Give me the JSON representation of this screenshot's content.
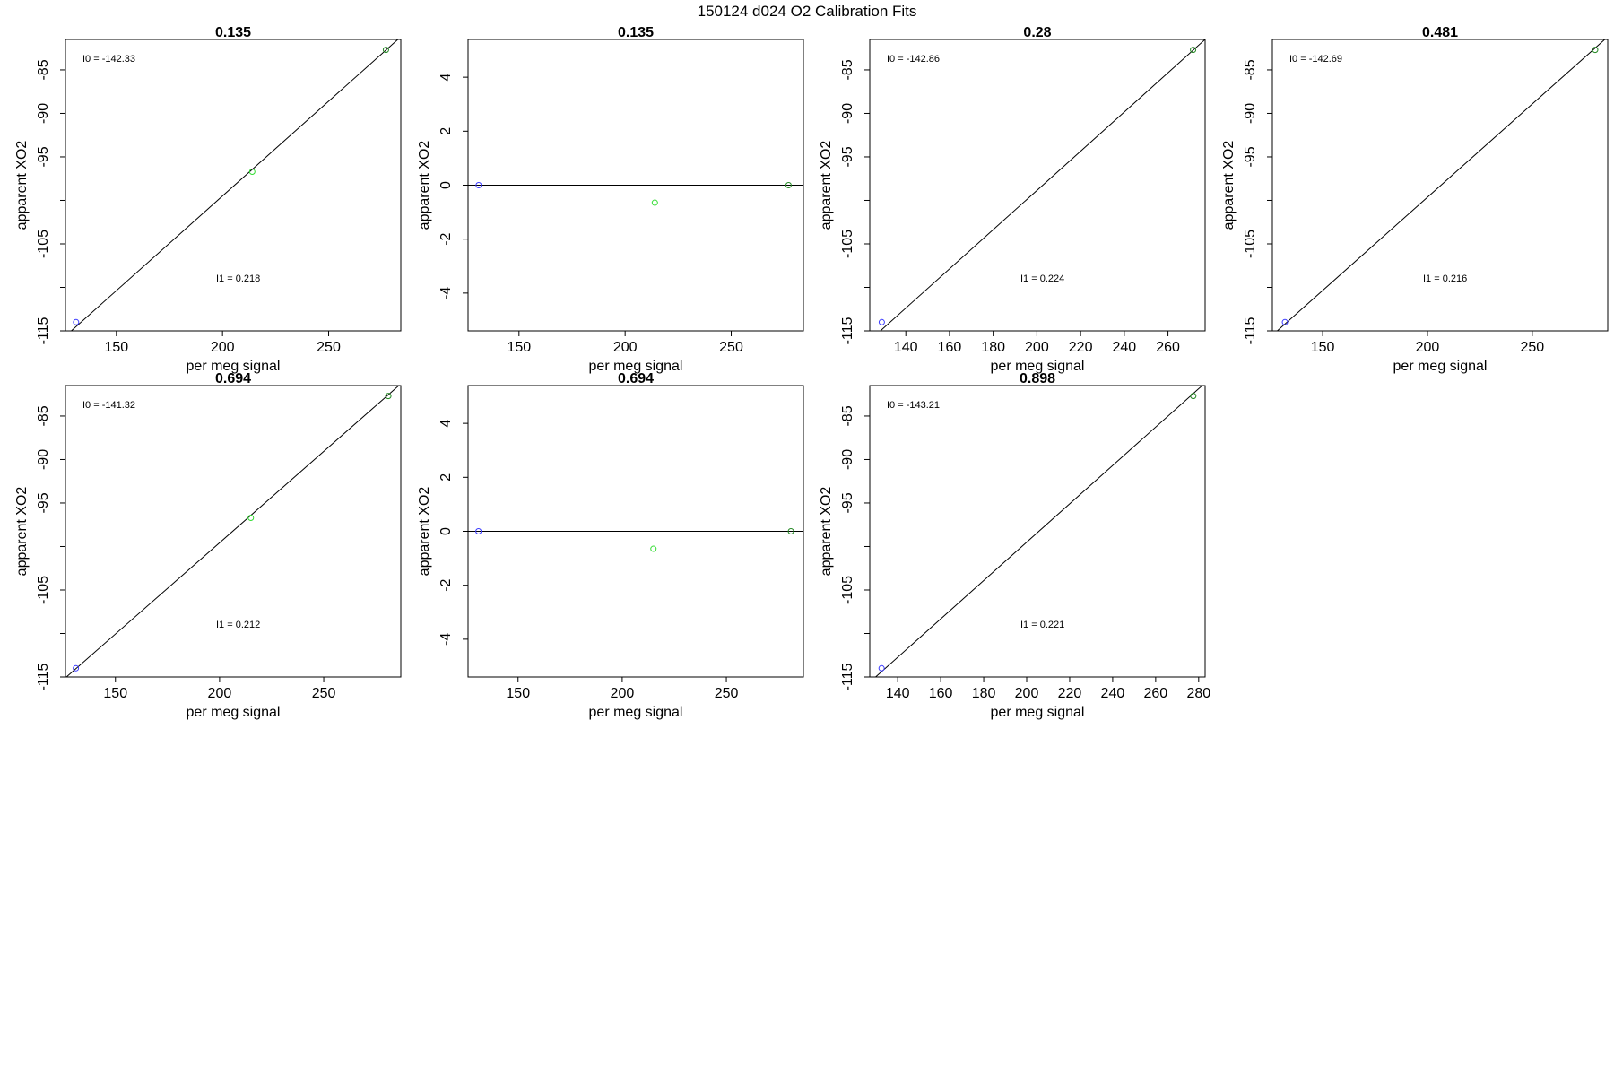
{
  "page_title": "150124   d024   O2 Calibration Fits",
  "colors": {
    "blue_point": "#3a3aff",
    "green_point": "#33dd33",
    "dark_green_point": "#228822",
    "axis": "#000000",
    "fit_line": "#000000"
  },
  "chart_data": [
    {
      "type": "scatter",
      "title": "0.135",
      "xlabel": "per meg signal",
      "ylabel": "apparent XO2",
      "xlim": [
        126,
        284
      ],
      "ylim": [
        -115,
        -81.5
      ],
      "xticks": [
        150,
        200,
        250
      ],
      "yticks": [
        -115,
        -105,
        -95,
        -90,
        -85
      ],
      "minor_yticks": [
        -110,
        -100
      ],
      "points": [
        {
          "x": 131,
          "y": -114,
          "color": "blue"
        },
        {
          "x": 214,
          "y": -96.7,
          "color": "green"
        },
        {
          "x": 277,
          "y": -82.7,
          "color": "dark-green"
        }
      ],
      "fit_line": [
        {
          "x": 126,
          "y": -115.6
        },
        {
          "x": 284,
          "y": -81.2
        }
      ],
      "annotations": [
        {
          "label": "I0 =",
          "value": "-142.33"
        },
        {
          "label": "I1 =",
          "value": "0.218"
        }
      ]
    },
    {
      "type": "scatter",
      "title": "0.135",
      "xlabel": "per meg signal",
      "ylabel": "apparent XO2",
      "xlim": [
        126,
        284
      ],
      "ylim": [
        -5.4,
        5.4
      ],
      "xticks": [
        150,
        200,
        250
      ],
      "yticks": [
        -4,
        -2,
        0,
        2,
        4
      ],
      "minor_yticks": [],
      "points": [
        {
          "x": 131,
          "y": 0,
          "color": "blue"
        },
        {
          "x": 214,
          "y": -0.65,
          "color": "green"
        },
        {
          "x": 277,
          "y": 0,
          "color": "dark-green"
        }
      ],
      "fit_line": [
        {
          "x": 126,
          "y": 0
        },
        {
          "x": 284,
          "y": 0
        }
      ],
      "annotations": []
    },
    {
      "type": "scatter",
      "title": "0.28",
      "xlabel": "per meg signal",
      "ylabel": "apparent XO2",
      "xlim": [
        123.5,
        277
      ],
      "ylim": [
        -115,
        -81.5
      ],
      "xticks": [
        140,
        160,
        180,
        200,
        220,
        240,
        260
      ],
      "yticks": [
        -115,
        -105,
        -95,
        -90,
        -85
      ],
      "minor_yticks": [
        -110,
        -100
      ],
      "points": [
        {
          "x": 129,
          "y": -114,
          "color": "blue"
        },
        {
          "x": 271.5,
          "y": -82.7,
          "color": "dark-green"
        }
      ],
      "fit_line": [
        {
          "x": 123.5,
          "y": -116.1
        },
        {
          "x": 277,
          "y": -81.5
        }
      ],
      "annotations": [
        {
          "label": "I0 =",
          "value": "-142.86"
        },
        {
          "label": "I1 =",
          "value": "0.224"
        }
      ]
    },
    {
      "type": "scatter",
      "title": "0.481",
      "xlabel": "per meg signal",
      "ylabel": "apparent XO2",
      "xlim": [
        126,
        286
      ],
      "ylim": [
        -115,
        -81.5
      ],
      "xticks": [
        150,
        200,
        250
      ],
      "yticks": [
        -115,
        -105,
        -95,
        -90,
        -85
      ],
      "minor_yticks": [
        -110,
        -100
      ],
      "points": [
        {
          "x": 132,
          "y": -114,
          "color": "blue"
        },
        {
          "x": 280,
          "y": -82.7,
          "color": "dark-green"
        }
      ],
      "fit_line": [
        {
          "x": 126,
          "y": -115.5
        },
        {
          "x": 286,
          "y": -81.2
        }
      ],
      "annotations": [
        {
          "label": "I0 =",
          "value": "-142.69"
        },
        {
          "label": "I1 =",
          "value": "0.216"
        }
      ]
    },
    {
      "type": "scatter",
      "title": "0.694",
      "xlabel": "per meg signal",
      "ylabel": "apparent XO2",
      "xlim": [
        126,
        287
      ],
      "ylim": [
        -115,
        -81.5
      ],
      "xticks": [
        150,
        200,
        250
      ],
      "yticks": [
        -115,
        -105,
        -95,
        -90,
        -85
      ],
      "minor_yticks": [
        -110,
        -100
      ],
      "points": [
        {
          "x": 131,
          "y": -114,
          "color": "blue"
        },
        {
          "x": 215,
          "y": -96.7,
          "color": "green"
        },
        {
          "x": 281,
          "y": -82.7,
          "color": "dark-green"
        }
      ],
      "fit_line": [
        {
          "x": 126,
          "y": -115.1
        },
        {
          "x": 287,
          "y": -81.3
        }
      ],
      "annotations": [
        {
          "label": "I0 =",
          "value": "-141.32"
        },
        {
          "label": "I1 =",
          "value": "0.212"
        }
      ]
    },
    {
      "type": "scatter",
      "title": "0.694",
      "xlabel": "per meg signal",
      "ylabel": "apparent XO2",
      "xlim": [
        126,
        287
      ],
      "ylim": [
        -5.4,
        5.4
      ],
      "xticks": [
        150,
        200,
        250
      ],
      "yticks": [
        -4,
        -2,
        0,
        2,
        4
      ],
      "minor_yticks": [],
      "points": [
        {
          "x": 131,
          "y": 0,
          "color": "blue"
        },
        {
          "x": 215,
          "y": -0.65,
          "color": "green"
        },
        {
          "x": 281,
          "y": 0,
          "color": "dark-green"
        }
      ],
      "fit_line": [
        {
          "x": 126,
          "y": 0
        },
        {
          "x": 287,
          "y": 0
        }
      ],
      "annotations": []
    },
    {
      "type": "scatter",
      "title": "0.898",
      "xlabel": "per meg signal",
      "ylabel": "apparent XO2",
      "xlim": [
        127,
        283
      ],
      "ylim": [
        -115,
        -81.5
      ],
      "xticks": [
        140,
        160,
        180,
        200,
        220,
        240,
        260,
        280
      ],
      "yticks": [
        -115,
        -105,
        -95,
        -90,
        -85
      ],
      "minor_yticks": [
        -110,
        -100
      ],
      "points": [
        {
          "x": 132.5,
          "y": -114,
          "color": "blue"
        },
        {
          "x": 277.5,
          "y": -82.7,
          "color": "dark-green"
        }
      ],
      "fit_line": [
        {
          "x": 127,
          "y": -115.6
        },
        {
          "x": 283,
          "y": -81.2
        }
      ],
      "annotations": [
        {
          "label": "I0 =",
          "value": "-143.21"
        },
        {
          "label": "I1 =",
          "value": "0.221"
        }
      ]
    }
  ]
}
